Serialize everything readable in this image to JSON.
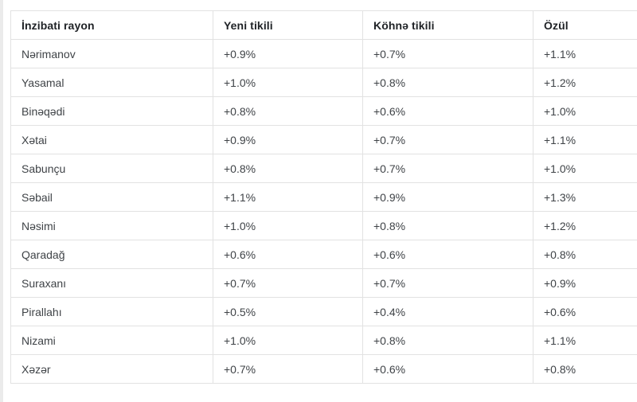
{
  "table": {
    "columns": [
      "İnzibati rayon",
      "Yeni tikili",
      "Köhnə tikili",
      "Özül"
    ],
    "rows": [
      {
        "district": "Nərimanov",
        "yeni_tikili": "+0.9%",
        "kohne_tikili": "+0.7%",
        "ozul": "+1.1%"
      },
      {
        "district": "Yasamal",
        "yeni_tikili": "+1.0%",
        "kohne_tikili": "+0.8%",
        "ozul": "+1.2%"
      },
      {
        "district": "Binəqədi",
        "yeni_tikili": "+0.8%",
        "kohne_tikili": "+0.6%",
        "ozul": "+1.0%"
      },
      {
        "district": "Xətai",
        "yeni_tikili": "+0.9%",
        "kohne_tikili": "+0.7%",
        "ozul": "+1.1%"
      },
      {
        "district": "Sabunçu",
        "yeni_tikili": "+0.8%",
        "kohne_tikili": "+0.7%",
        "ozul": "+1.0%"
      },
      {
        "district": "Səbail",
        "yeni_tikili": "+1.1%",
        "kohne_tikili": "+0.9%",
        "ozul": "+1.3%"
      },
      {
        "district": "Nəsimi",
        "yeni_tikili": "+1.0%",
        "kohne_tikili": "+0.8%",
        "ozul": "+1.2%"
      },
      {
        "district": "Qaradağ",
        "yeni_tikili": "+0.6%",
        "kohne_tikili": "+0.6%",
        "ozul": "+0.8%"
      },
      {
        "district": "Suraxanı",
        "yeni_tikili": "+0.7%",
        "kohne_tikili": "+0.7%",
        "ozul": "+0.9%"
      },
      {
        "district": "Pirallahı",
        "yeni_tikili": "+0.5%",
        "kohne_tikili": "+0.4%",
        "ozul": "+0.6%"
      },
      {
        "district": "Nizami",
        "yeni_tikili": "+1.0%",
        "kohne_tikili": "+0.8%",
        "ozul": "+1.1%"
      },
      {
        "district": "Xəzər",
        "yeni_tikili": "+0.7%",
        "kohne_tikili": "+0.6%",
        "ozul": "+0.8%"
      }
    ]
  },
  "colors": {
    "background": "#ffffff",
    "border": "#e2e2e2",
    "header_text": "#1f2226",
    "body_text": "#3f4347",
    "edge_strip": "#ebebeb"
  }
}
